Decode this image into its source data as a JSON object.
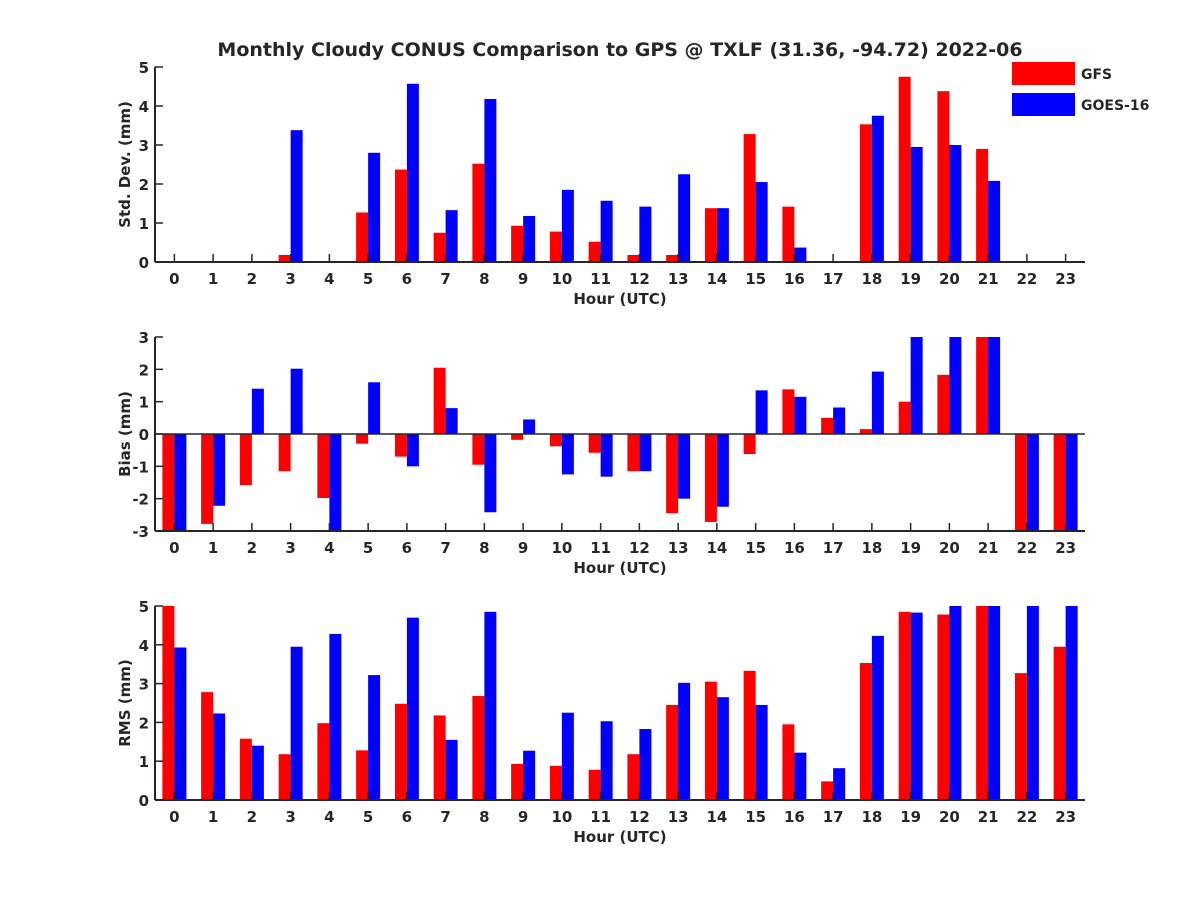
{
  "figure_title": "Monthly Cloudy CONUS Comparison to GPS @ TXLF (31.36, -94.72) 2022-06",
  "legend": [
    {
      "label": "GFS",
      "color": "#ff0000"
    },
    {
      "label": "GOES-16",
      "color": "#0000ff"
    }
  ],
  "chart_data": [
    {
      "type": "bar",
      "title": "Monthly Cloudy CONUS Comparison to GPS @ TXLF (31.36, -94.72) 2022-06",
      "xlabel": "Hour (UTC)",
      "ylabel": "Std. Dev. (mm)",
      "ylim": [
        0,
        5
      ],
      "yticks": [
        0,
        1,
        2,
        3,
        4,
        5
      ],
      "categories": [
        "0",
        "1",
        "2",
        "3",
        "4",
        "5",
        "6",
        "7",
        "8",
        "9",
        "10",
        "11",
        "12",
        "13",
        "14",
        "15",
        "16",
        "17",
        "18",
        "19",
        "20",
        "21",
        "22",
        "23"
      ],
      "legend_position": "top-right",
      "series": [
        {
          "name": "GFS",
          "color": "#ff0000",
          "values": [
            0,
            0,
            0,
            0.18,
            0,
            1.27,
            2.37,
            0.75,
            2.52,
            0.93,
            0.78,
            0.52,
            0.18,
            0.18,
            1.38,
            3.28,
            1.42,
            0,
            3.53,
            4.75,
            4.38,
            2.9,
            0,
            0
          ]
        },
        {
          "name": "GOES-16",
          "color": "#0000ff",
          "values": [
            0,
            0,
            0,
            3.38,
            0,
            2.8,
            4.57,
            1.33,
            4.18,
            1.18,
            1.85,
            1.57,
            1.42,
            2.25,
            1.38,
            2.05,
            0.37,
            0,
            3.75,
            2.95,
            3.0,
            2.08,
            0,
            0
          ]
        }
      ]
    },
    {
      "type": "bar",
      "title": "",
      "xlabel": "Hour (UTC)",
      "ylabel": "Bias (mm)",
      "ylim": [
        -3,
        3
      ],
      "yticks": [
        -3,
        -2,
        -1,
        0,
        1,
        2,
        3
      ],
      "categories": [
        "0",
        "1",
        "2",
        "3",
        "4",
        "5",
        "6",
        "7",
        "8",
        "9",
        "10",
        "11",
        "12",
        "13",
        "14",
        "15",
        "16",
        "17",
        "18",
        "19",
        "20",
        "21",
        "22",
        "23"
      ],
      "series": [
        {
          "name": "GFS",
          "color": "#ff0000",
          "values": [
            -3,
            -2.78,
            -1.58,
            -1.15,
            -1.98,
            -0.3,
            -0.7,
            2.05,
            -0.95,
            -0.18,
            -0.38,
            -0.58,
            -1.15,
            -2.45,
            -2.72,
            -0.62,
            1.38,
            0.5,
            0.15,
            1.0,
            1.83,
            3,
            -3,
            -3
          ]
        },
        {
          "name": "GOES-16",
          "color": "#0000ff",
          "values": [
            -3,
            -2.22,
            1.4,
            2.02,
            -3,
            1.6,
            -1.0,
            0.8,
            -2.42,
            0.45,
            -1.25,
            -1.32,
            -1.15,
            -2.0,
            -2.25,
            1.35,
            1.15,
            0.82,
            1.93,
            3,
            3,
            3,
            -3,
            -3
          ]
        }
      ]
    },
    {
      "type": "bar",
      "title": "",
      "xlabel": "Hour (UTC)",
      "ylabel": "RMS (mm)",
      "ylim": [
        0,
        5
      ],
      "yticks": [
        0,
        1,
        2,
        3,
        4,
        5
      ],
      "categories": [
        "0",
        "1",
        "2",
        "3",
        "4",
        "5",
        "6",
        "7",
        "8",
        "9",
        "10",
        "11",
        "12",
        "13",
        "14",
        "15",
        "16",
        "17",
        "18",
        "19",
        "20",
        "21",
        "22",
        "23"
      ],
      "series": [
        {
          "name": "GFS",
          "color": "#ff0000",
          "values": [
            5.0,
            2.78,
            1.58,
            1.18,
            1.98,
            1.28,
            2.48,
            2.18,
            2.68,
            0.93,
            0.88,
            0.78,
            1.18,
            2.45,
            3.05,
            3.33,
            1.95,
            0.48,
            3.53,
            4.85,
            4.78,
            5.0,
            3.27,
            3.95
          ]
        },
        {
          "name": "GOES-16",
          "color": "#0000ff",
          "values": [
            3.93,
            2.23,
            1.4,
            3.95,
            4.28,
            3.22,
            4.7,
            1.55,
            4.85,
            1.27,
            2.25,
            2.03,
            1.83,
            3.02,
            2.65,
            2.45,
            1.22,
            0.82,
            4.23,
            4.83,
            5.0,
            5.0,
            5.0,
            5.0
          ]
        }
      ]
    }
  ]
}
